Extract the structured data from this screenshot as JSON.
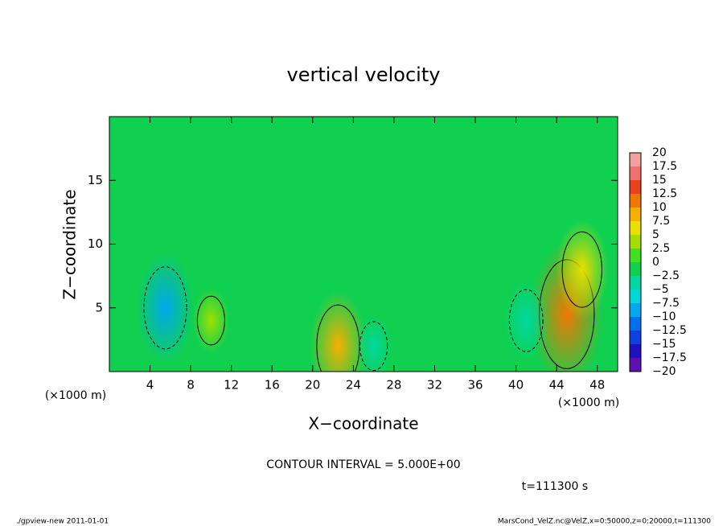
{
  "chart_data": {
    "type": "contour",
    "title": "vertical velocity",
    "x_label": "X−coordinate",
    "y_label": "Z−coordinate",
    "x_unit": "(×1000 m)",
    "y_unit": "(×1000 m)",
    "xlim": [
      0,
      50
    ],
    "xticks": [
      4,
      8,
      12,
      16,
      20,
      24,
      28,
      32,
      36,
      40,
      44,
      48
    ],
    "ylim": [
      0,
      20
    ],
    "yticks": [
      5,
      10,
      15
    ],
    "colorbar": {
      "levels": [
        20,
        17.5,
        15,
        12.5,
        10,
        7.5,
        5,
        2.5,
        0,
        {
          "value": -2.5,
          "label": "−2.5"
        },
        {
          "value": -5,
          "label": "−5"
        },
        {
          "value": -7.5,
          "label": "−7.5"
        },
        {
          "value": -10,
          "label": "−10"
        },
        {
          "value": -12.5,
          "label": "−12.5"
        },
        {
          "value": -15,
          "label": "−15"
        },
        {
          "value": -17.5,
          "label": "−17.5"
        },
        {
          "value": -20,
          "label": "−20"
        }
      ],
      "colors": [
        "#f4a0a0",
        "#f07070",
        "#e84020",
        "#f07800",
        "#f8b000",
        "#e8e000",
        "#a0e000",
        "#40e020",
        "#10d050",
        "#00d8a0",
        "#00d8d8",
        "#00a8f0",
        "#0070f0",
        "#1040e0",
        "#2010c0",
        "#6010b0"
      ]
    },
    "features": [
      {
        "x": 45,
        "z": 4.5,
        "value": 12
      },
      {
        "x": 46.5,
        "z": 8,
        "value": 7
      },
      {
        "x": 22.5,
        "z": 2,
        "value": 8
      },
      {
        "x": 10,
        "z": 4,
        "value": 3
      },
      {
        "x": 5.5,
        "z": 5,
        "value": -8
      },
      {
        "x": 41,
        "z": 4,
        "value": -5
      },
      {
        "x": 26,
        "z": 2,
        "value": -3
      }
    ],
    "contour_interval": "CONTOUR INTERVAL = 5.000E+00",
    "time_label": "t=111300 s",
    "footer_left": "./gpview-new  2011-01-01",
    "footer_right": "MarsCond_VelZ.nc@VelZ,x=0:50000,z=0:20000,t=111300"
  }
}
